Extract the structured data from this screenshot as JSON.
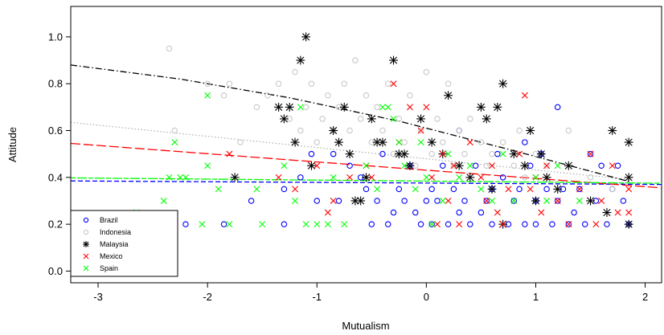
{
  "chart_data": {
    "type": "scatter",
    "xlabel": "Mutualism",
    "ylabel": "Attitude",
    "xlim": [
      -3.25,
      2.15
    ],
    "ylim": [
      -0.05,
      1.13
    ],
    "xticks": [
      -3,
      -2,
      -1,
      0,
      1,
      2
    ],
    "yticks": [
      0.0,
      0.2,
      0.4,
      0.6,
      0.8,
      1.0
    ],
    "xtick_labels": [
      "-3",
      "-2",
      "-1",
      "0",
      "1",
      "2"
    ],
    "ytick_labels": [
      "0.0",
      "0.2",
      "0.4",
      "0.6",
      "0.8",
      "1.0"
    ],
    "grid": false,
    "legend_position": "bottom-left",
    "series": [
      {
        "name": "Brazil",
        "marker": "circle",
        "color": "#0000ff",
        "points": [
          [
            -2.2,
            0.2
          ],
          [
            -1.85,
            0.2
          ],
          [
            -1.6,
            0.3
          ],
          [
            -1.3,
            0.35
          ],
          [
            -1.3,
            0.2
          ],
          [
            -1.15,
            0.4
          ],
          [
            -1.05,
            0.5
          ],
          [
            -1.0,
            0.3
          ],
          [
            -0.85,
            0.5
          ],
          [
            -0.8,
            0.3
          ],
          [
            -0.7,
            0.45
          ],
          [
            -0.6,
            0.4
          ],
          [
            -0.55,
            0.35
          ],
          [
            -0.5,
            0.2
          ],
          [
            -0.45,
            0.3
          ],
          [
            -0.4,
            0.5
          ],
          [
            -0.35,
            0.2
          ],
          [
            -0.3,
            0.25
          ],
          [
            -0.25,
            0.35
          ],
          [
            -0.2,
            0.3
          ],
          [
            -0.15,
            0.45
          ],
          [
            -0.1,
            0.25
          ],
          [
            -0.05,
            0.2
          ],
          [
            0.0,
            0.3
          ],
          [
            0.05,
            0.35
          ],
          [
            0.05,
            0.2
          ],
          [
            0.1,
            0.3
          ],
          [
            0.15,
            0.45
          ],
          [
            0.2,
            0.2
          ],
          [
            0.25,
            0.35
          ],
          [
            0.3,
            0.6
          ],
          [
            0.3,
            0.25
          ],
          [
            0.35,
            0.3
          ],
          [
            0.4,
            0.2
          ],
          [
            0.45,
            0.45
          ],
          [
            0.5,
            0.25
          ],
          [
            0.55,
            0.3
          ],
          [
            0.6,
            0.35
          ],
          [
            0.6,
            0.2
          ],
          [
            0.65,
            0.5
          ],
          [
            0.7,
            0.4
          ],
          [
            0.75,
            0.2
          ],
          [
            0.8,
            0.3
          ],
          [
            0.85,
            0.35
          ],
          [
            0.9,
            0.55
          ],
          [
            0.9,
            0.2
          ],
          [
            0.95,
            0.45
          ],
          [
            1.0,
            0.3
          ],
          [
            1.0,
            0.2
          ],
          [
            1.05,
            0.5
          ],
          [
            1.1,
            0.35
          ],
          [
            1.15,
            0.2
          ],
          [
            1.2,
            0.7
          ],
          [
            1.2,
            0.3
          ],
          [
            1.25,
            0.35
          ],
          [
            1.3,
            0.2
          ],
          [
            1.35,
            0.25
          ],
          [
            1.4,
            0.35
          ],
          [
            1.45,
            0.2
          ],
          [
            1.5,
            0.5
          ],
          [
            1.55,
            0.3
          ],
          [
            1.6,
            0.45
          ],
          [
            1.65,
            0.2
          ],
          [
            1.7,
            0.35
          ],
          [
            1.75,
            0.45
          ],
          [
            1.8,
            0.3
          ],
          [
            1.85,
            0.2
          ]
        ]
      },
      {
        "name": "Indonesia",
        "marker": "circle",
        "color": "#c8c8c8",
        "points": [
          [
            -2.35,
            0.95
          ],
          [
            -2.3,
            0.6
          ],
          [
            -2.0,
            0.8
          ],
          [
            -1.85,
            0.75
          ],
          [
            -1.8,
            0.8
          ],
          [
            -1.7,
            0.55
          ],
          [
            -1.55,
            0.7
          ],
          [
            -1.45,
            0.75
          ],
          [
            -1.35,
            0.8
          ],
          [
            -1.25,
            0.65
          ],
          [
            -1.2,
            0.85
          ],
          [
            -1.15,
            0.6
          ],
          [
            -1.1,
            0.7
          ],
          [
            -1.05,
            0.8
          ],
          [
            -1.0,
            0.55
          ],
          [
            -0.95,
            0.65
          ],
          [
            -0.9,
            0.75
          ],
          [
            -0.85,
            0.6
          ],
          [
            -0.8,
            0.7
          ],
          [
            -0.75,
            0.8
          ],
          [
            -0.7,
            0.6
          ],
          [
            -0.65,
            0.9
          ],
          [
            -0.6,
            0.65
          ],
          [
            -0.55,
            0.75
          ],
          [
            -0.5,
            0.55
          ],
          [
            -0.45,
            0.7
          ],
          [
            -0.4,
            0.6
          ],
          [
            -0.35,
            0.8
          ],
          [
            -0.3,
            0.5
          ],
          [
            -0.25,
            0.65
          ],
          [
            -0.2,
            0.55
          ],
          [
            -0.15,
            0.75
          ],
          [
            -0.1,
            0.45
          ],
          [
            -0.05,
            0.6
          ],
          [
            0.0,
            0.85
          ],
          [
            0.05,
            0.5
          ],
          [
            0.1,
            0.65
          ],
          [
            0.15,
            0.55
          ],
          [
            0.2,
            0.8
          ],
          [
            0.25,
            0.45
          ],
          [
            0.3,
            0.6
          ],
          [
            0.35,
            0.5
          ],
          [
            0.4,
            0.65
          ],
          [
            0.5,
            0.55
          ],
          [
            0.55,
            0.45
          ],
          [
            0.6,
            0.5
          ],
          [
            0.7,
            0.55
          ],
          [
            0.8,
            0.45
          ],
          [
            0.85,
            0.6
          ],
          [
            0.9,
            0.4
          ],
          [
            1.0,
            0.5
          ],
          [
            1.1,
            0.45
          ],
          [
            1.3,
            0.6
          ],
          [
            1.5,
            0.4
          ],
          [
            1.7,
            0.35
          ]
        ]
      },
      {
        "name": "Malaysia",
        "marker": "asterisk",
        "color": "#000000",
        "points": [
          [
            -1.75,
            0.4
          ],
          [
            -1.35,
            0.7
          ],
          [
            -1.3,
            0.65
          ],
          [
            -1.25,
            0.7
          ],
          [
            -1.2,
            0.55
          ],
          [
            -1.15,
            0.9
          ],
          [
            -1.1,
            1.0
          ],
          [
            -1.05,
            0.45
          ],
          [
            -0.85,
            0.6
          ],
          [
            -0.8,
            0.55
          ],
          [
            -0.75,
            0.7
          ],
          [
            -0.7,
            0.5
          ],
          [
            -0.65,
            0.3
          ],
          [
            -0.6,
            0.3
          ],
          [
            -0.55,
            0.4
          ],
          [
            -0.5,
            0.65
          ],
          [
            -0.45,
            0.55
          ],
          [
            -0.4,
            0.55
          ],
          [
            -0.3,
            0.9
          ],
          [
            -0.25,
            0.5
          ],
          [
            -0.2,
            0.5
          ],
          [
            -0.15,
            0.45
          ],
          [
            -0.05,
            0.65
          ],
          [
            0.05,
            0.55
          ],
          [
            0.15,
            0.5
          ],
          [
            0.2,
            0.75
          ],
          [
            0.3,
            0.45
          ],
          [
            0.4,
            0.4
          ],
          [
            0.5,
            0.7
          ],
          [
            0.55,
            0.65
          ],
          [
            0.6,
            0.35
          ],
          [
            0.65,
            0.7
          ],
          [
            0.7,
            0.8
          ],
          [
            0.7,
            0.2
          ],
          [
            0.8,
            0.5
          ],
          [
            0.9,
            0.45
          ],
          [
            0.95,
            0.6
          ],
          [
            1.0,
            0.3
          ],
          [
            1.05,
            0.5
          ],
          [
            1.1,
            0.4
          ],
          [
            1.2,
            0.35
          ],
          [
            1.3,
            0.45
          ],
          [
            1.5,
            0.3
          ],
          [
            1.65,
            0.25
          ],
          [
            1.7,
            0.6
          ],
          [
            1.85,
            0.55
          ],
          [
            1.85,
            0.4
          ],
          [
            1.85,
            0.2
          ]
        ]
      },
      {
        "name": "Mexico",
        "marker": "x",
        "color": "#ff0000",
        "points": [
          [
            -1.8,
            0.5
          ],
          [
            -1.35,
            0.4
          ],
          [
            -1.2,
            0.35
          ],
          [
            -1.0,
            0.45
          ],
          [
            -0.9,
            0.25
          ],
          [
            -0.85,
            0.3
          ],
          [
            -0.7,
            0.4
          ],
          [
            -0.55,
            0.45
          ],
          [
            -0.5,
            0.4
          ],
          [
            -0.3,
            0.8
          ],
          [
            -0.25,
            0.55
          ],
          [
            -0.15,
            0.7
          ],
          [
            -0.05,
            0.6
          ],
          [
            0.0,
            0.7
          ],
          [
            0.05,
            0.4
          ],
          [
            0.1,
            0.2
          ],
          [
            0.15,
            0.5
          ],
          [
            0.2,
            0.3
          ],
          [
            0.25,
            0.45
          ],
          [
            0.3,
            0.2
          ],
          [
            0.4,
            0.55
          ],
          [
            0.5,
            0.4
          ],
          [
            0.55,
            0.3
          ],
          [
            0.6,
            0.45
          ],
          [
            0.65,
            0.25
          ],
          [
            0.7,
            0.2
          ],
          [
            0.75,
            0.35
          ],
          [
            0.85,
            0.5
          ],
          [
            0.9,
            0.75
          ],
          [
            0.95,
            0.35
          ],
          [
            1.0,
            0.4
          ],
          [
            1.05,
            0.25
          ],
          [
            1.1,
            0.45
          ],
          [
            1.2,
            0.3
          ],
          [
            1.3,
            0.2
          ],
          [
            1.4,
            0.35
          ],
          [
            1.5,
            0.5
          ],
          [
            1.55,
            0.2
          ],
          [
            1.6,
            0.3
          ],
          [
            1.7,
            0.45
          ],
          [
            1.75,
            0.25
          ],
          [
            1.85,
            0.35
          ],
          [
            1.85,
            0.25
          ]
        ]
      },
      {
        "name": "Spain",
        "marker": "x",
        "color": "#00ff00",
        "points": [
          [
            -2.65,
            0.25
          ],
          [
            -2.4,
            0.3
          ],
          [
            -2.35,
            0.4
          ],
          [
            -2.3,
            0.55
          ],
          [
            -2.25,
            0.4
          ],
          [
            -2.2,
            0.4
          ],
          [
            -2.05,
            0.2
          ],
          [
            -2.0,
            0.45
          ],
          [
            -2.0,
            0.75
          ],
          [
            -1.9,
            0.35
          ],
          [
            -1.8,
            0.2
          ],
          [
            -1.55,
            0.35
          ],
          [
            -1.5,
            0.2
          ],
          [
            -1.3,
            0.45
          ],
          [
            -1.2,
            0.3
          ],
          [
            -1.15,
            0.7
          ],
          [
            -1.1,
            0.2
          ],
          [
            -1.0,
            0.2
          ],
          [
            -0.9,
            0.2
          ],
          [
            -0.85,
            0.4
          ],
          [
            -0.75,
            0.2
          ],
          [
            -0.55,
            0.45
          ],
          [
            -0.45,
            0.35
          ],
          [
            -0.4,
            0.7
          ],
          [
            -0.35,
            0.7
          ],
          [
            -0.3,
            0.65
          ],
          [
            -0.25,
            0.55
          ],
          [
            -0.2,
            0.45
          ],
          [
            -0.1,
            0.35
          ],
          [
            -0.05,
            0.55
          ],
          [
            0.0,
            0.4
          ],
          [
            0.05,
            0.2
          ],
          [
            0.15,
            0.3
          ],
          [
            0.2,
            0.5
          ],
          [
            0.3,
            0.4
          ],
          [
            0.4,
            0.45
          ],
          [
            0.5,
            0.35
          ],
          [
            0.6,
            0.3
          ],
          [
            0.7,
            0.5
          ],
          [
            0.8,
            0.3
          ],
          [
            1.0,
            0.4
          ],
          [
            1.1,
            0.3
          ],
          [
            1.2,
            0.45
          ],
          [
            1.4,
            0.3
          ]
        ]
      }
    ],
    "trend_lines": [
      {
        "name": "Brazil",
        "color": "#0000ff",
        "dash": "dashed",
        "x": [
          -3.25,
          2.15
        ],
        "y": [
          0.385,
          0.37
        ]
      },
      {
        "name": "Indonesia",
        "color": "#b4b4b4",
        "dash": "dotted",
        "x": [
          -3.25,
          1.87
        ],
        "y": [
          0.635,
          0.39
        ]
      },
      {
        "name": "Malaysia",
        "color": "#000000",
        "dash": "dashdot",
        "x": [
          -3.25,
          -2.25,
          -1.25,
          -0.25,
          0.75,
          1.87
        ],
        "y": [
          0.88,
          0.82,
          0.74,
          0.64,
          0.52,
          0.38
        ]
      },
      {
        "name": "Mexico",
        "color": "#ff0000",
        "dash": "longdash",
        "x": [
          -3.25,
          2.15
        ],
        "y": [
          0.545,
          0.355
        ]
      },
      {
        "name": "Spain",
        "color": "#00ff00",
        "dash": "twodash",
        "x": [
          -3.25,
          2.15
        ],
        "y": [
          0.398,
          0.375
        ]
      }
    ]
  }
}
